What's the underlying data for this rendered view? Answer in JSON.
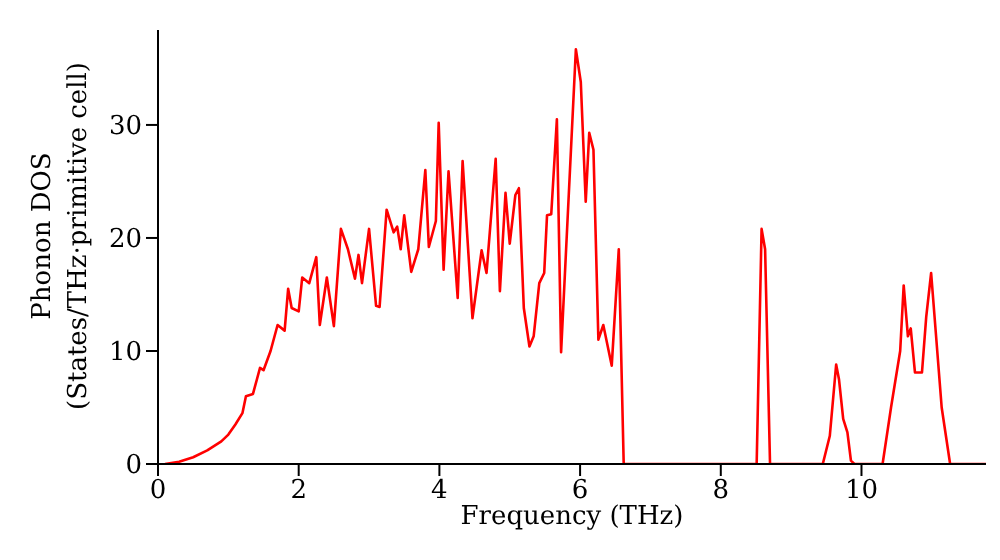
{
  "chart_data": {
    "type": "line",
    "xlabel": "Frequency (THz)",
    "ylabel": "Phonon DOS\n(States/THz·primitive cell)",
    "xlim": [
      0,
      11.77
    ],
    "ylim": [
      0,
      38.4
    ],
    "xticks": [
      0,
      2,
      4,
      6,
      8,
      10
    ],
    "yticks": [
      0,
      10,
      20,
      30
    ],
    "grid": false,
    "legend": false,
    "marker": "none",
    "line_style": "solid",
    "series": [
      {
        "color": "#ff0000",
        "x": [
          0.1,
          0.3,
          0.5,
          0.7,
          0.9,
          1.0,
          1.1,
          1.2,
          1.25,
          1.35,
          1.45,
          1.5,
          1.6,
          1.7,
          1.8,
          1.85,
          1.9,
          2.0,
          2.05,
          2.15,
          2.25,
          2.3,
          2.4,
          2.5,
          2.6,
          2.7,
          2.8,
          2.85,
          2.9,
          3.0,
          3.1,
          3.15,
          3.25,
          3.35,
          3.4,
          3.45,
          3.5,
          3.6,
          3.7,
          3.8,
          3.85,
          3.95,
          3.99,
          4.06,
          4.13,
          4.26,
          4.33,
          4.47,
          4.6,
          4.67,
          4.8,
          4.86,
          4.94,
          5.0,
          5.08,
          5.13,
          5.2,
          5.28,
          5.34,
          5.42,
          5.49,
          5.53,
          5.59,
          5.67,
          5.73,
          5.94,
          6.01,
          6.08,
          6.13,
          6.19,
          6.26,
          6.33,
          6.45,
          6.55,
          6.62,
          8.51,
          8.58,
          8.63,
          8.7,
          9.45,
          9.55,
          9.64,
          9.68,
          9.74,
          9.8,
          9.85,
          9.9,
          10.3,
          10.42,
          10.55,
          10.6,
          10.66,
          10.7,
          10.76,
          10.86,
          10.92,
          10.99,
          11.14,
          11.26,
          11.77
        ],
        "values": [
          0,
          0.2,
          0.6,
          1.2,
          2,
          2.6,
          3.5,
          4.5,
          6,
          6.2,
          8.5,
          8.3,
          10,
          12.3,
          11.8,
          15.5,
          13.8,
          13.5,
          16.5,
          16,
          18.3,
          12.3,
          16.5,
          12.2,
          20.8,
          19,
          16.4,
          18.5,
          16,
          20.8,
          14,
          13.9,
          22.5,
          20.5,
          21,
          19,
          22,
          17,
          19,
          26,
          19.2,
          21.5,
          30.2,
          17.2,
          25.9,
          14.7,
          26.8,
          12.9,
          18.9,
          16.9,
          27,
          15.3,
          24,
          19.5,
          23.8,
          24.4,
          13.8,
          10.4,
          11.3,
          16,
          16.9,
          22,
          22.1,
          30.5,
          9.9,
          36.7,
          33.8,
          23.2,
          29.3,
          27.8,
          11,
          12.3,
          8.7,
          19,
          0,
          0,
          20.8,
          19,
          0,
          0,
          2.5,
          8.8,
          7.5,
          4,
          2.8,
          0.3,
          0,
          0,
          5,
          10,
          15.8,
          11.3,
          12,
          8.1,
          8.1,
          13,
          16.9,
          5,
          0,
          0
        ]
      }
    ]
  }
}
